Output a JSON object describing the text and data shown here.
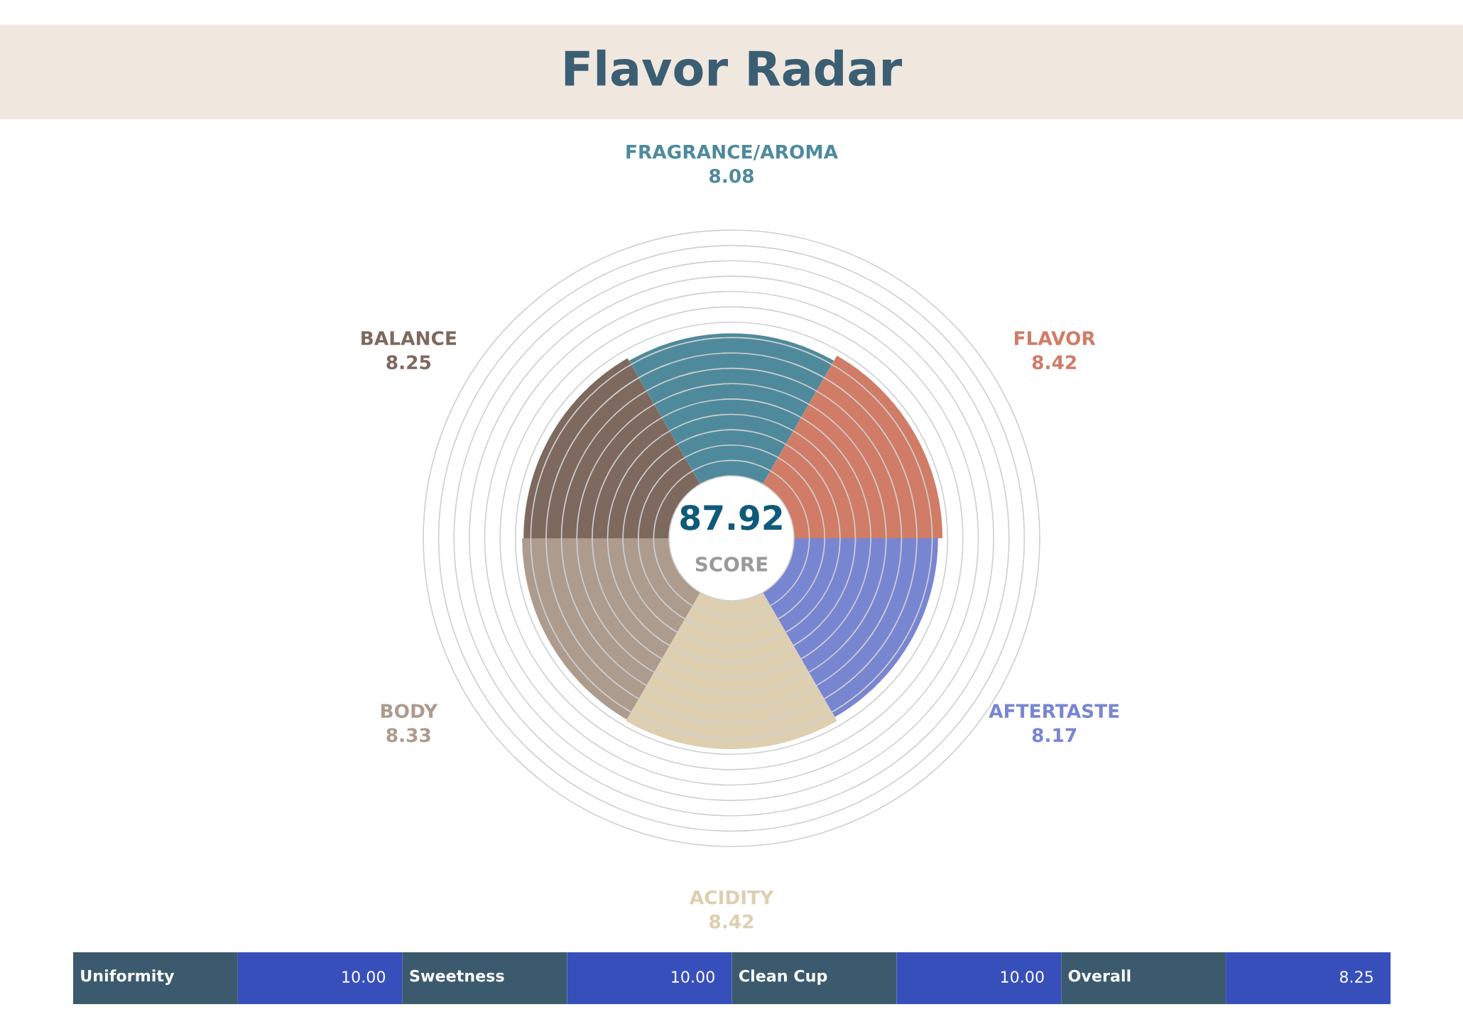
{
  "chart_data": [
    {
      "type": "other",
      "title": "Flavor Radar",
      "categories": [
        "FRAGRANCE/AROMA",
        "FLAVOR",
        "AFTERTASTE",
        "ACIDITY",
        "BODY",
        "BALANCE"
      ],
      "values": [
        8.08,
        8.42,
        8.17,
        8.42,
        8.33,
        8.25
      ],
      "value_labels": [
        "8.08",
        "8.42",
        "8.17",
        "8.42",
        "8.33",
        "8.25"
      ],
      "colors": [
        "#4f8a9c",
        "#d07c66",
        "#7886d2",
        "#ddcfb0",
        "#ad9b8e",
        "#7e695e"
      ],
      "annotations": [
        "87.92",
        "SCORE"
      ]
    },
    {
      "type": "other",
      "categories": [
        "Uniformity",
        "Sweetness",
        "Clean Cup",
        "Overall"
      ],
      "value_labels": [
        "10.00",
        "10.00",
        "10.00",
        "8.25"
      ],
      "colors": [
        "#3b5a6e",
        "#3b5a6e",
        "#3b5a6e",
        "#3b5a6e"
      ],
      "color": "#374fbb"
    }
  ]
}
